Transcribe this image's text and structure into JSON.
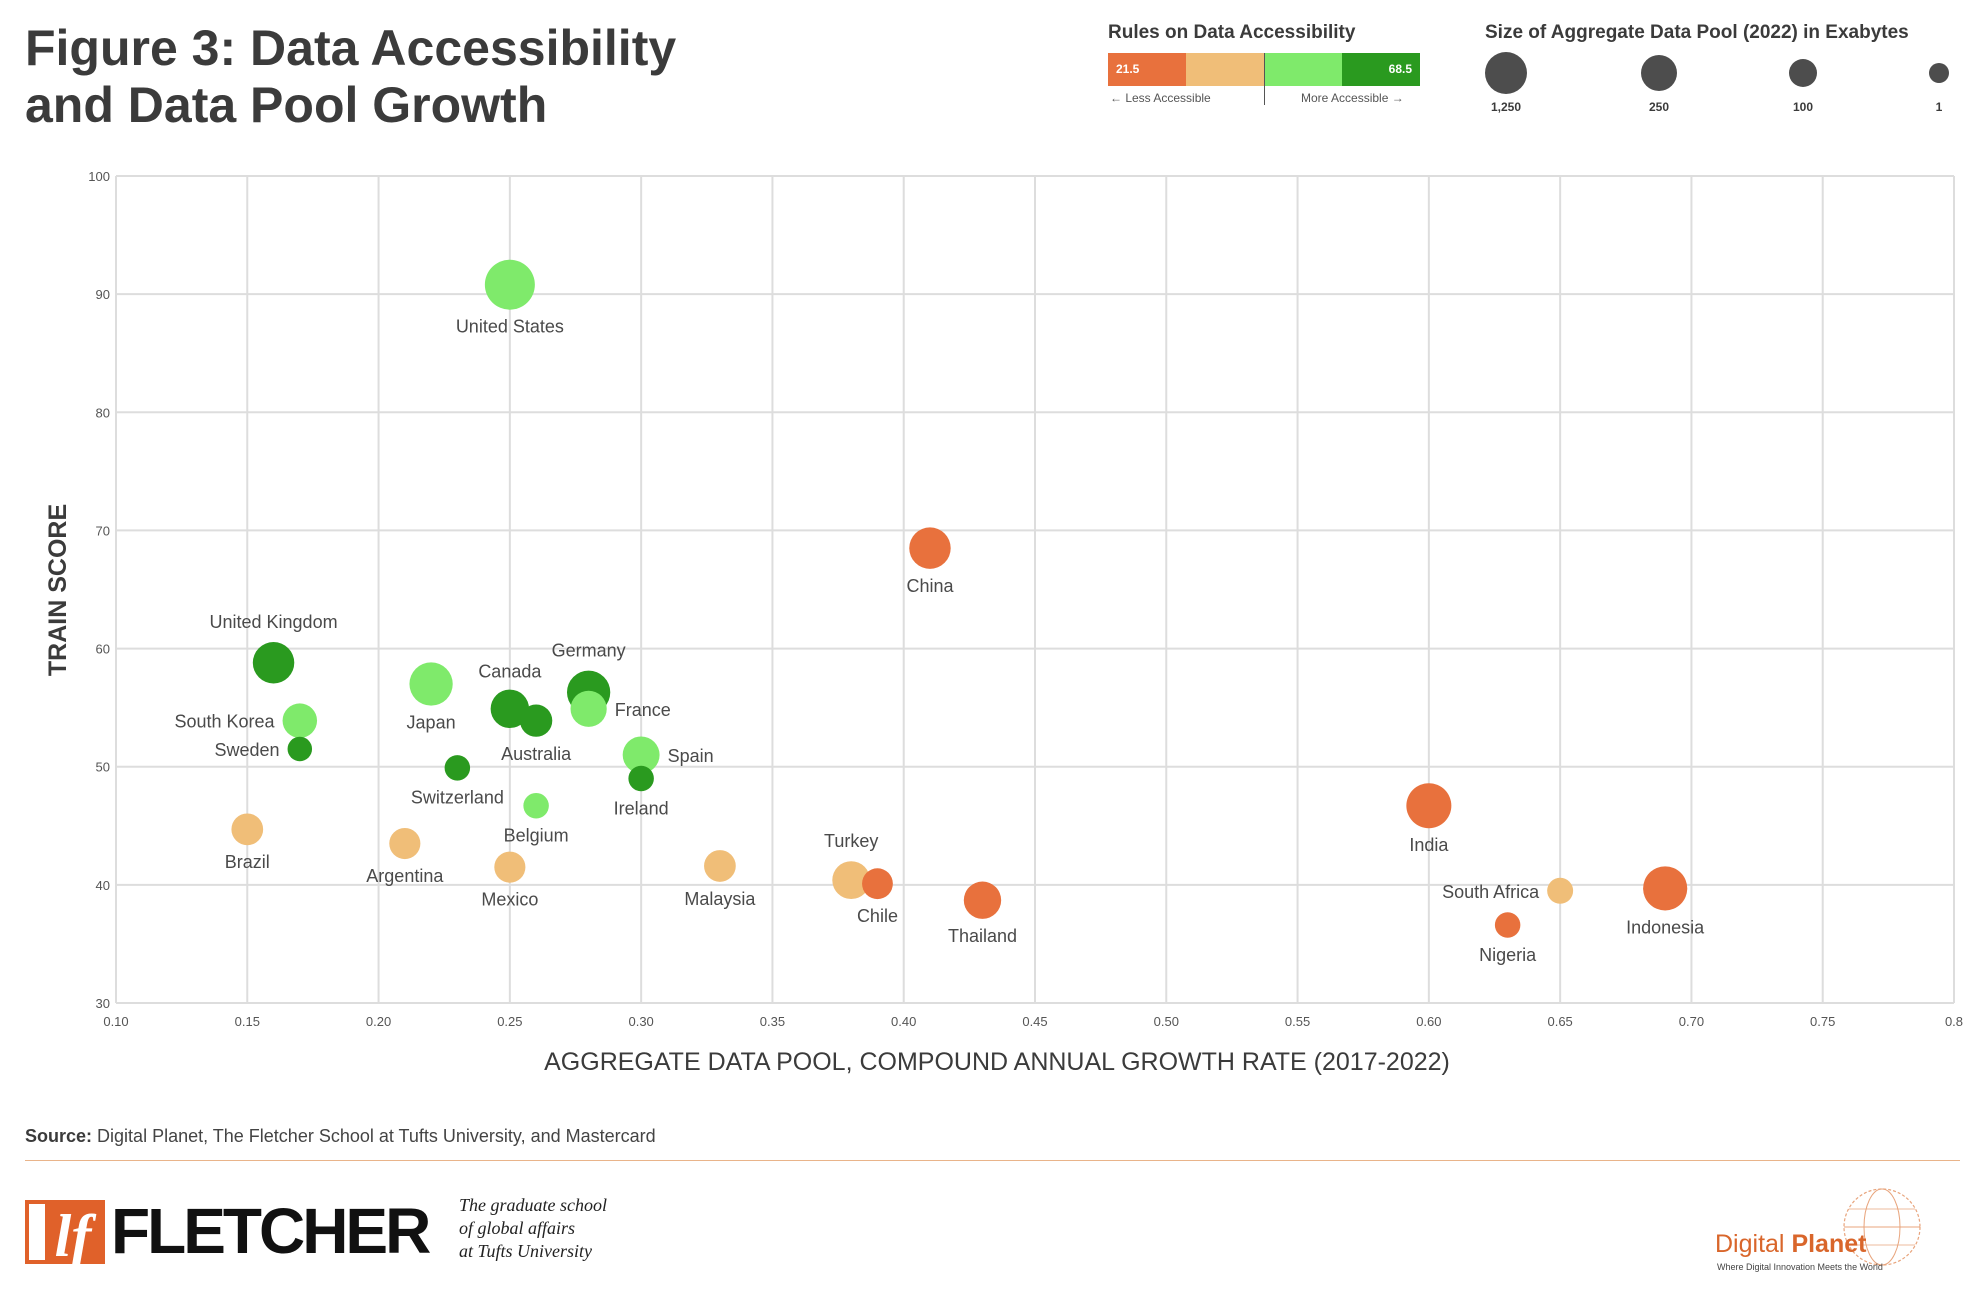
{
  "title_line1": "Figure 3: Data Accessibility",
  "title_line2": "and Data Pool Growth",
  "legend": {
    "accessibility_title": "Rules on Data Accessibility",
    "accessibility_min": "21.5",
    "accessibility_max": "68.5",
    "less_label": "← Less Accessible",
    "more_label": "More Accessible →",
    "size_title": "Size of Aggregate Data Pool (2022) in Exabytes",
    "size_labels": [
      "1,250",
      "250",
      "100",
      "1"
    ]
  },
  "colors": {
    "least": "#e8713d",
    "low": "#f0be78",
    "high": "#7fea6b",
    "most": "#2a9a1f",
    "grid": "#dddddd",
    "text": "#3b3b3b"
  },
  "chart_data": {
    "type": "scatter",
    "xlabel": "AGGREGATE DATA POOL, COMPOUND ANNUAL GROWTH RATE (2017-2022)",
    "ylabel": "TRAIN SCORE",
    "xlim": [
      0.1,
      0.8
    ],
    "ylim": [
      30,
      100
    ],
    "x_ticks": [
      "0.10",
      "0.15",
      "0.20",
      "0.25",
      "0.30",
      "0.35",
      "0.40",
      "0.45",
      "0.50",
      "0.55",
      "0.60",
      "0.65",
      "0.70",
      "0.75",
      "0.8"
    ],
    "x_tick_values": [
      0.1,
      0.15,
      0.2,
      0.25,
      0.3,
      0.35,
      0.4,
      0.45,
      0.5,
      0.55,
      0.6,
      0.65,
      0.7,
      0.75,
      0.8
    ],
    "y_ticks": [
      "30",
      "40",
      "50",
      "60",
      "70",
      "80",
      "90",
      "100"
    ],
    "y_tick_values": [
      30,
      40,
      50,
      60,
      70,
      80,
      90,
      100
    ],
    "grid": true,
    "color_categories": [
      "least",
      "low",
      "high",
      "most"
    ],
    "points": [
      {
        "label": "United States",
        "x": 0.25,
        "y": 90.8,
        "cat": "high",
        "size": 1250,
        "label_pos": "below"
      },
      {
        "label": "China",
        "x": 0.41,
        "y": 68.5,
        "cat": "least",
        "size": 700,
        "label_pos": "below"
      },
      {
        "label": "United Kingdom",
        "x": 0.16,
        "y": 58.8,
        "cat": "most",
        "size": 700,
        "label_pos": "above"
      },
      {
        "label": "South Korea",
        "x": 0.17,
        "y": 53.9,
        "cat": "high",
        "size": 380,
        "label_pos": "left"
      },
      {
        "label": "Sweden",
        "x": 0.17,
        "y": 51.5,
        "cat": "most",
        "size": 90,
        "label_pos": "left"
      },
      {
        "label": "Japan",
        "x": 0.22,
        "y": 57.0,
        "cat": "high",
        "size": 800,
        "label_pos": "below"
      },
      {
        "label": "Canada",
        "x": 0.25,
        "y": 54.9,
        "cat": "most",
        "size": 550,
        "label_pos": "aboveright"
      },
      {
        "label": "Australia",
        "x": 0.26,
        "y": 53.9,
        "cat": "most",
        "size": 300,
        "label_pos": "below"
      },
      {
        "label": "Germany",
        "x": 0.28,
        "y": 56.3,
        "cat": "most",
        "size": 800,
        "label_pos": "above"
      },
      {
        "label": "France",
        "x": 0.28,
        "y": 54.9,
        "cat": "high",
        "size": 450,
        "label_pos": "right"
      },
      {
        "label": "Spain",
        "x": 0.3,
        "y": 51.0,
        "cat": "high",
        "size": 480,
        "label_pos": "right"
      },
      {
        "label": "Ireland",
        "x": 0.3,
        "y": 49.0,
        "cat": "most",
        "size": 110,
        "label_pos": "below"
      },
      {
        "label": "Switzerland",
        "x": 0.23,
        "y": 49.9,
        "cat": "most",
        "size": 110,
        "label_pos": "below"
      },
      {
        "label": "Belgium",
        "x": 0.26,
        "y": 46.7,
        "cat": "high",
        "size": 110,
        "label_pos": "below"
      },
      {
        "label": "Brazil",
        "x": 0.15,
        "y": 44.7,
        "cat": "low",
        "size": 280,
        "label_pos": "below"
      },
      {
        "label": "Argentina",
        "x": 0.21,
        "y": 43.5,
        "cat": "low",
        "size": 260,
        "label_pos": "below"
      },
      {
        "label": "Mexico",
        "x": 0.25,
        "y": 41.5,
        "cat": "low",
        "size": 260,
        "label_pos": "below"
      },
      {
        "label": "Malaysia",
        "x": 0.33,
        "y": 41.6,
        "cat": "low",
        "size": 280,
        "label_pos": "below"
      },
      {
        "label": "Turkey",
        "x": 0.38,
        "y": 40.4,
        "cat": "low",
        "size": 520,
        "label_pos": "above"
      },
      {
        "label": "Chile",
        "x": 0.39,
        "y": 40.1,
        "cat": "least",
        "size": 250,
        "label_pos": "below"
      },
      {
        "label": "Thailand",
        "x": 0.43,
        "y": 38.7,
        "cat": "least",
        "size": 500,
        "label_pos": "below"
      },
      {
        "label": "India",
        "x": 0.6,
        "y": 46.7,
        "cat": "least",
        "size": 900,
        "label_pos": "below"
      },
      {
        "label": "South Africa",
        "x": 0.65,
        "y": 39.5,
        "cat": "low",
        "size": 120,
        "label_pos": "left"
      },
      {
        "label": "Nigeria",
        "x": 0.63,
        "y": 36.6,
        "cat": "least",
        "size": 110,
        "label_pos": "below"
      },
      {
        "label": "Indonesia",
        "x": 0.69,
        "y": 39.7,
        "cat": "least",
        "size": 850,
        "label_pos": "below"
      }
    ]
  },
  "source_label": "Source:",
  "source_text": "Digital Planet, The Fletcher School at Tufts University, and Mastercard",
  "fletcher_mark": "lf",
  "fletcher_word": "FLETCHER",
  "tagline": [
    "The graduate school",
    "of global affairs",
    "at Tufts University"
  ],
  "dp_name_1": "Digital",
  "dp_name_2": "Planet",
  "dp_tag": "Where Digital Innovation Meets the World"
}
